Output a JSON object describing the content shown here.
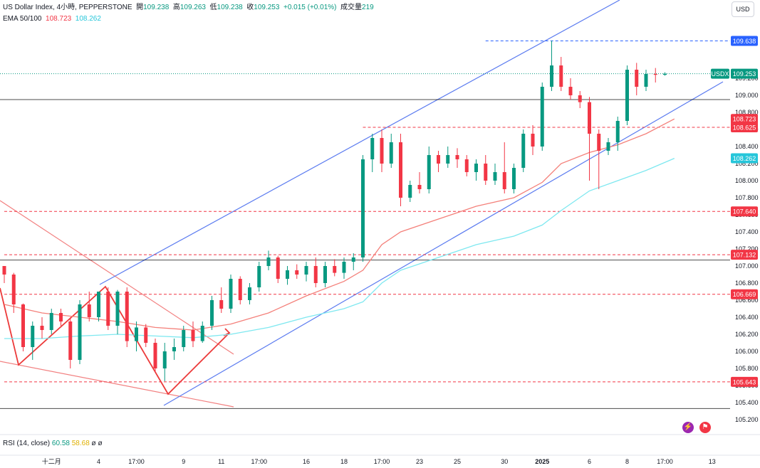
{
  "header": {
    "symbol_line": "US Dollar Index, 4小時, PEPPERSTONE",
    "open_label": "開",
    "open": "109.238",
    "high_label": "高",
    "high": "109.263",
    "low_label": "低",
    "low": "109.238",
    "close_label": "收",
    "close": "109.253",
    "change": "+0.015 (+0.01%)",
    "volume_label": "成交量",
    "volume": "219",
    "ema_label": "EMA 50/100",
    "ema50": "108.723",
    "ema100": "108.262"
  },
  "currency_button": "USD",
  "rsi": {
    "label": "RSI (14, close)",
    "v1": "60.58",
    "v2": "58.68",
    "v3": "ø",
    "v4": "ø"
  },
  "colors": {
    "up": "#089981",
    "down": "#f23645",
    "ema50": "#f4807a",
    "ema100": "#7ee8f0",
    "channel": "#5b7bf0",
    "level": "#e05050",
    "hline": "#000000"
  },
  "icons": [
    "lightning-icon",
    "flag-icon"
  ],
  "chart_data": {
    "type": "candlestick",
    "symbol": "USDX",
    "ylim": [
      105.2,
      110.0
    ],
    "yticks": [
      "105.200",
      "105.400",
      "105.600",
      "105.800",
      "106.000",
      "106.200",
      "106.400",
      "106.600",
      "106.800",
      "107.000",
      "107.200",
      "107.400",
      "107.600",
      "107.800",
      "108.000",
      "108.200",
      "108.400",
      "108.600",
      "108.800",
      "109.000",
      "109.200"
    ],
    "xticks": [
      {
        "label": "十二月",
        "i": 5
      },
      {
        "label": "4",
        "i": 10
      },
      {
        "label": "17:00",
        "i": 14
      },
      {
        "label": "9",
        "i": 19
      },
      {
        "label": "11",
        "i": 23
      },
      {
        "label": "17:00",
        "i": 27
      },
      {
        "label": "16",
        "i": 32
      },
      {
        "label": "18",
        "i": 36
      },
      {
        "label": "17:00",
        "i": 40
      },
      {
        "label": "23",
        "i": 44
      },
      {
        "label": "25",
        "i": 48
      },
      {
        "label": "30",
        "i": 53
      },
      {
        "label": "2025",
        "i": 57
      },
      {
        "label": "6",
        "i": 62
      },
      {
        "label": "8",
        "i": 66
      },
      {
        "label": "17:00",
        "i": 70
      },
      {
        "label": "13",
        "i": 75
      }
    ],
    "ohlc": [
      [
        107.0,
        107.0,
        106.8,
        106.9
      ],
      [
        106.9,
        106.92,
        106.45,
        106.55
      ],
      [
        106.55,
        106.56,
        106.0,
        106.05
      ],
      [
        106.05,
        106.35,
        105.9,
        106.3
      ],
      [
        106.3,
        106.4,
        106.15,
        106.25
      ],
      [
        106.25,
        106.5,
        106.2,
        106.45
      ],
      [
        106.45,
        106.5,
        106.3,
        106.35
      ],
      [
        106.35,
        106.4,
        105.8,
        105.9
      ],
      [
        105.9,
        106.6,
        105.85,
        106.55
      ],
      [
        106.55,
        106.7,
        106.35,
        106.4
      ],
      [
        106.4,
        106.7,
        106.35,
        106.7
      ],
      [
        106.7,
        106.75,
        106.25,
        106.3
      ],
      [
        106.3,
        106.72,
        106.2,
        106.7
      ],
      [
        106.7,
        106.75,
        106.05,
        106.12
      ],
      [
        106.12,
        106.35,
        106.0,
        106.28
      ],
      [
        106.28,
        106.32,
        106.05,
        106.1
      ],
      [
        106.1,
        106.15,
        105.75,
        105.8
      ],
      [
        105.8,
        106.1,
        105.65,
        106.0
      ],
      [
        106.0,
        106.15,
        105.9,
        106.05
      ],
      [
        106.05,
        106.3,
        106.0,
        106.25
      ],
      [
        106.25,
        106.35,
        106.05,
        106.12
      ],
      [
        106.12,
        106.35,
        106.1,
        106.3
      ],
      [
        106.3,
        106.65,
        106.25,
        106.6
      ],
      [
        106.6,
        106.75,
        106.45,
        106.5
      ],
      [
        106.5,
        106.9,
        106.45,
        106.85
      ],
      [
        106.85,
        106.88,
        106.55,
        106.6
      ],
      [
        106.6,
        106.8,
        106.55,
        106.75
      ],
      [
        106.75,
        107.05,
        106.7,
        107.0
      ],
      [
        107.0,
        107.18,
        106.95,
        107.1
      ],
      [
        107.1,
        107.12,
        106.8,
        106.85
      ],
      [
        106.85,
        107.0,
        106.78,
        106.95
      ],
      [
        106.95,
        107.02,
        106.85,
        106.9
      ],
      [
        106.9,
        107.05,
        106.82,
        107.0
      ],
      [
        107.0,
        107.1,
        106.75,
        106.8
      ],
      [
        106.8,
        107.05,
        106.75,
        107.0
      ],
      [
        107.0,
        107.08,
        106.88,
        106.92
      ],
      [
        106.92,
        107.1,
        106.85,
        107.05
      ],
      [
        107.05,
        107.15,
        106.95,
        107.1
      ],
      [
        107.1,
        108.3,
        107.05,
        108.25
      ],
      [
        108.25,
        108.55,
        108.1,
        108.5
      ],
      [
        108.5,
        108.6,
        108.1,
        108.2
      ],
      [
        108.2,
        108.55,
        108.15,
        108.45
      ],
      [
        108.45,
        108.55,
        107.7,
        107.8
      ],
      [
        107.8,
        108.0,
        107.75,
        107.95
      ],
      [
        107.95,
        108.1,
        107.85,
        107.9
      ],
      [
        107.9,
        108.4,
        107.85,
        108.3
      ],
      [
        108.3,
        108.35,
        108.1,
        108.2
      ],
      [
        108.2,
        108.4,
        108.15,
        108.3
      ],
      [
        108.3,
        108.38,
        108.15,
        108.25
      ],
      [
        108.25,
        108.3,
        108.05,
        108.1
      ],
      [
        108.1,
        108.25,
        108.0,
        108.2
      ],
      [
        108.2,
        108.3,
        107.95,
        108.0
      ],
      [
        108.0,
        108.2,
        107.95,
        108.1
      ],
      [
        108.1,
        108.45,
        107.85,
        107.9
      ],
      [
        107.9,
        108.2,
        107.85,
        108.15
      ],
      [
        108.15,
        108.6,
        108.1,
        108.55
      ],
      [
        108.55,
        108.65,
        108.3,
        108.4
      ],
      [
        108.4,
        109.15,
        108.35,
        109.1
      ],
      [
        109.1,
        109.64,
        109.05,
        109.35
      ],
      [
        109.35,
        109.45,
        109.05,
        109.1
      ],
      [
        109.1,
        109.2,
        108.95,
        109.0
      ],
      [
        109.0,
        109.05,
        108.85,
        108.92
      ],
      [
        108.92,
        108.98,
        108.0,
        108.55
      ],
      [
        108.55,
        108.6,
        107.9,
        108.35
      ],
      [
        108.35,
        108.5,
        108.3,
        108.45
      ],
      [
        108.45,
        108.75,
        108.35,
        108.7
      ],
      [
        108.7,
        109.35,
        108.65,
        109.3
      ],
      [
        109.3,
        109.38,
        109.0,
        109.1
      ],
      [
        109.1,
        109.3,
        109.05,
        109.25
      ],
      [
        109.25,
        109.32,
        109.15,
        109.24
      ],
      [
        109.24,
        109.27,
        109.23,
        109.253
      ]
    ],
    "ema50": [
      [
        0,
        106.55
      ],
      [
        4,
        106.45
      ],
      [
        8,
        106.4
      ],
      [
        12,
        106.35
      ],
      [
        16,
        106.28
      ],
      [
        20,
        106.25
      ],
      [
        24,
        106.32
      ],
      [
        28,
        106.45
      ],
      [
        32,
        106.65
      ],
      [
        36,
        106.82
      ],
      [
        38,
        106.95
      ],
      [
        40,
        107.25
      ],
      [
        42,
        107.4
      ],
      [
        46,
        107.55
      ],
      [
        50,
        107.7
      ],
      [
        54,
        107.8
      ],
      [
        57,
        107.98
      ],
      [
        59,
        108.2
      ],
      [
        62,
        108.33
      ],
      [
        65,
        108.42
      ],
      [
        68,
        108.55
      ],
      [
        71,
        108.723
      ]
    ],
    "ema100": [
      [
        0,
        106.15
      ],
      [
        4,
        106.15
      ],
      [
        8,
        106.18
      ],
      [
        12,
        106.2
      ],
      [
        16,
        106.18
      ],
      [
        20,
        106.16
      ],
      [
        24,
        106.2
      ],
      [
        28,
        106.28
      ],
      [
        32,
        106.4
      ],
      [
        36,
        106.5
      ],
      [
        38,
        106.58
      ],
      [
        40,
        106.8
      ],
      [
        42,
        106.95
      ],
      [
        46,
        107.1
      ],
      [
        50,
        107.25
      ],
      [
        54,
        107.35
      ],
      [
        57,
        107.48
      ],
      [
        59,
        107.65
      ],
      [
        62,
        107.88
      ],
      [
        65,
        108.0
      ],
      [
        68,
        108.12
      ],
      [
        71,
        108.262
      ]
    ],
    "levels": [
      {
        "price": "109.638",
        "color": "#2962ff",
        "style": "dashed",
        "from": 51
      },
      {
        "price": "108.723",
        "color": "#f23645",
        "style": "none"
      },
      {
        "price": "108.625",
        "color": "#f23645",
        "style": "dashed",
        "from": 38
      },
      {
        "price": "108.262",
        "color": "#26c6da",
        "style": "none"
      },
      {
        "price": "107.640",
        "color": "#f23645",
        "style": "dashed",
        "from": 0
      },
      {
        "price": "107.132",
        "color": "#f23645",
        "style": "dashed",
        "from": 0
      },
      {
        "price": "106.669",
        "color": "#f23645",
        "style": "dashed",
        "from": 0
      },
      {
        "price": "105.643",
        "color": "#f23645",
        "style": "dashed",
        "from": 0
      }
    ],
    "horizontal_lines": [
      108.95,
      107.07,
      105.33
    ],
    "last_price": {
      "label": "USDX",
      "value": "109.253"
    }
  }
}
